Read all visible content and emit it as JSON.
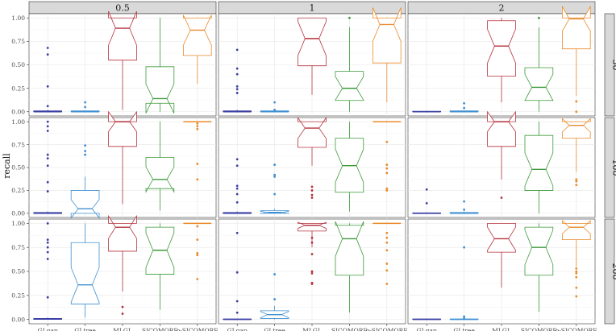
{
  "chart_data": {
    "type": "box",
    "ylabel": "recall",
    "xlabel": "",
    "ylim": [
      0,
      1
    ],
    "yticks": [
      0.0,
      0.25,
      0.5,
      0.75,
      1.0
    ],
    "ytick_labels": [
      "0.00",
      "0.25",
      "0.50",
      "0.75",
      "1.00"
    ],
    "categories": [
      "GLgap",
      "GLtree",
      "MLGL",
      "SICOMORE",
      "ρ-SICOMORE"
    ],
    "colors": {
      "GLgap": "#3a3fa3",
      "GLtree": "#3f8fd2",
      "MLGL": "#b5323d",
      "SICOMORE": "#3d9a3a",
      "ρ-SICOMORE": "#ea8a2a"
    },
    "notched": true,
    "facet_columns": [
      "0.5",
      "1",
      "2"
    ],
    "facet_rows": [
      "50",
      "100",
      "200"
    ],
    "grid": true,
    "legend": "none",
    "panels": [
      {
        "col": "0.5",
        "row": "50",
        "boxes": [
          {
            "cat": "GLgap",
            "q1": 0,
            "median": 0,
            "q3": 0.01,
            "low": 0,
            "high": 0.02,
            "outliers": [
              0.06,
              0.27,
              0.61,
              0.68
            ]
          },
          {
            "cat": "GLtree",
            "q1": 0,
            "median": 0,
            "q3": 0.01,
            "low": 0,
            "high": 0.01,
            "outliers": [
              0.05,
              0.1
            ]
          },
          {
            "cat": "MLGL",
            "q1": 0.55,
            "median": 0.89,
            "q3": 1.0,
            "low": 0.02,
            "high": 1.0,
            "outliers": []
          },
          {
            "cat": "SICOMORE",
            "q1": 0.09,
            "median": 0.14,
            "q3": 0.48,
            "low": 0,
            "high": 1.0,
            "outliers": []
          },
          {
            "cat": "ρ-SICOMORE",
            "q1": 0.6,
            "median": 0.87,
            "q3": 1.0,
            "low": 0.3,
            "high": 1.0,
            "outliers": []
          }
        ]
      },
      {
        "col": "1",
        "row": "50",
        "boxes": [
          {
            "cat": "GLgap",
            "q1": 0,
            "median": 0,
            "q3": 0.01,
            "low": 0,
            "high": 0.02,
            "outliers": [
              0.2,
              0.24,
              0.27,
              0.4,
              0.46,
              0.66
            ]
          },
          {
            "cat": "GLtree",
            "q1": 0,
            "median": 0,
            "q3": 0.01,
            "low": 0,
            "high": 0.01,
            "outliers": [
              0.02,
              0.1
            ]
          },
          {
            "cat": "MLGL",
            "q1": 0.49,
            "median": 0.78,
            "q3": 1.0,
            "low": 0.18,
            "high": 1.0,
            "outliers": []
          },
          {
            "cat": "SICOMORE",
            "q1": 0.12,
            "median": 0.25,
            "q3": 0.43,
            "low": 0,
            "high": 0.9,
            "outliers": [
              1.0
            ]
          },
          {
            "cat": "ρ-SICOMORE",
            "q1": 0.52,
            "median": 0.93,
            "q3": 1.0,
            "low": 0.1,
            "high": 1.0,
            "outliers": []
          }
        ]
      },
      {
        "col": "2",
        "row": "50",
        "boxes": [
          {
            "cat": "GLgap",
            "q1": 0,
            "median": 0,
            "q3": 0.005,
            "low": 0,
            "high": 0.01,
            "outliers": []
          },
          {
            "cat": "GLtree",
            "q1": 0,
            "median": 0,
            "q3": 0.01,
            "low": 0,
            "high": 0.01,
            "outliers": [
              0.04,
              0.09
            ]
          },
          {
            "cat": "MLGL",
            "q1": 0.38,
            "median": 0.7,
            "q3": 0.97,
            "low": 0.1,
            "high": 1.0,
            "outliers": []
          },
          {
            "cat": "SICOMORE",
            "q1": 0.12,
            "median": 0.26,
            "q3": 0.47,
            "low": 0,
            "high": 0.9,
            "outliers": [
              1.0
            ]
          },
          {
            "cat": "ρ-SICOMORE",
            "q1": 0.67,
            "median": 0.99,
            "q3": 1.0,
            "low": 0.17,
            "high": 1.0,
            "outliers": [
              0.0,
              0.11
            ]
          }
        ]
      },
      {
        "col": "0.5",
        "row": "100",
        "boxes": [
          {
            "cat": "GLgap",
            "q1": 0,
            "median": 0,
            "q3": 0.01,
            "low": 0,
            "high": 0.02,
            "outliers": [
              0.24,
              0.34,
              0.52,
              0.6,
              0.64,
              0.9,
              0.95,
              1.0
            ]
          },
          {
            "cat": "GLtree",
            "q1": 0,
            "median": 0.05,
            "q3": 0.25,
            "low": 0,
            "high": 0.4,
            "outliers": [
              0.64,
              0.68,
              0.74
            ]
          },
          {
            "cat": "MLGL",
            "q1": 0.73,
            "median": 1.0,
            "q3": 1.0,
            "low": 0.1,
            "high": 1.0,
            "outliers": []
          },
          {
            "cat": "SICOMORE",
            "q1": 0.27,
            "median": 0.37,
            "q3": 0.61,
            "low": 0.03,
            "high": 1.0,
            "outliers": []
          },
          {
            "cat": "ρ-SICOMORE",
            "q1": 1.0,
            "median": 1.0,
            "q3": 1.0,
            "low": 1.0,
            "high": 1.0,
            "outliers": [
              0.37,
              0.54,
              0.92,
              0.95,
              0.98
            ]
          }
        ]
      },
      {
        "col": "1",
        "row": "100",
        "boxes": [
          {
            "cat": "GLgap",
            "q1": 0,
            "median": 0,
            "q3": 0.01,
            "low": 0,
            "high": 0.02,
            "outliers": [
              0.12,
              0.21,
              0.27,
              0.3,
              0.52,
              0.59
            ]
          },
          {
            "cat": "GLtree",
            "q1": 0,
            "median": 0.01,
            "q3": 0.03,
            "low": 0,
            "high": 0.05,
            "outliers": [
              0.21,
              0.4,
              0.42,
              0.53
            ]
          },
          {
            "cat": "MLGL",
            "q1": 0.72,
            "median": 0.93,
            "q3": 1.0,
            "low": 0.52,
            "high": 1.0,
            "outliers": [
              0.17,
              0.2,
              0.25,
              0.29
            ]
          },
          {
            "cat": "SICOMORE",
            "q1": 0.23,
            "median": 0.52,
            "q3": 0.82,
            "low": 0.02,
            "high": 1.0,
            "outliers": []
          },
          {
            "cat": "ρ-SICOMORE",
            "q1": 1.0,
            "median": 1.0,
            "q3": 1.0,
            "low": 1.0,
            "high": 1.0,
            "outliers": [
              0.25,
              0.27,
              0.44,
              0.49,
              0.53,
              0.78
            ]
          }
        ]
      },
      {
        "col": "2",
        "row": "100",
        "boxes": [
          {
            "cat": "GLgap",
            "q1": 0,
            "median": 0,
            "q3": 0.005,
            "low": 0,
            "high": 0.01,
            "outliers": [
              0.11,
              0.26
            ]
          },
          {
            "cat": "GLtree",
            "q1": 0,
            "median": 0,
            "q3": 0.01,
            "low": 0,
            "high": 0.02,
            "outliers": [
              0.04,
              0.13
            ]
          },
          {
            "cat": "MLGL",
            "q1": 0.73,
            "median": 1.0,
            "q3": 1.0,
            "low": 0.37,
            "high": 1.0,
            "outliers": [
              0.17
            ]
          },
          {
            "cat": "SICOMORE",
            "q1": 0.25,
            "median": 0.48,
            "q3": 0.85,
            "low": 0,
            "high": 1.0,
            "outliers": []
          },
          {
            "cat": "ρ-SICOMORE",
            "q1": 0.82,
            "median": 0.96,
            "q3": 1.0,
            "low": 0.45,
            "high": 1.0,
            "outliers": [
              0.31,
              0.35,
              0.37
            ]
          }
        ]
      },
      {
        "col": "0.5",
        "row": "200",
        "boxes": [
          {
            "cat": "GLgap",
            "q1": 0,
            "median": 0.005,
            "q3": 0.01,
            "low": 0,
            "high": 0.02,
            "outliers": [
              0.23,
              0.63,
              0.7,
              0.75,
              0.8,
              0.83,
              1.0
            ]
          },
          {
            "cat": "GLtree",
            "q1": 0.16,
            "median": 0.36,
            "q3": 0.8,
            "low": 0.02,
            "high": 1.0,
            "outliers": []
          },
          {
            "cat": "MLGL",
            "q1": 0.71,
            "median": 0.96,
            "q3": 1.0,
            "low": 0.29,
            "high": 1.0,
            "outliers": [
              0.06,
              0.13
            ]
          },
          {
            "cat": "SICOMORE",
            "q1": 0.47,
            "median": 0.72,
            "q3": 0.96,
            "low": 0.1,
            "high": 1.0,
            "outliers": []
          },
          {
            "cat": "ρ-SICOMORE",
            "q1": 1.0,
            "median": 1.0,
            "q3": 1.0,
            "low": 1.0,
            "high": 1.0,
            "outliers": [
              0.42,
              0.67,
              0.69,
              0.83,
              0.97
            ]
          }
        ]
      },
      {
        "col": "1",
        "row": "200",
        "boxes": [
          {
            "cat": "GLgap",
            "q1": 0,
            "median": 0,
            "q3": 0.005,
            "low": 0,
            "high": 0.01,
            "outliers": [
              0.07,
              0.19,
              0.49,
              0.9
            ]
          },
          {
            "cat": "GLtree",
            "q1": 0.01,
            "median": 0.05,
            "q3": 0.09,
            "low": 0,
            "high": 0.14,
            "outliers": [
              0.21,
              0.47
            ]
          },
          {
            "cat": "MLGL",
            "q1": 0.92,
            "median": 0.98,
            "q3": 1.0,
            "low": 0.75,
            "high": 1.0,
            "outliers": [
              0.37,
              0.38,
              0.48,
              0.5,
              0.68,
              0.8,
              0.85
            ]
          },
          {
            "cat": "SICOMORE",
            "q1": 0.46,
            "median": 0.84,
            "q3": 0.98,
            "low": 0.07,
            "high": 1.0,
            "outliers": []
          },
          {
            "cat": "ρ-SICOMORE",
            "q1": 1.0,
            "median": 1.0,
            "q3": 1.0,
            "low": 1.0,
            "high": 1.0,
            "outliers": [
              0.37,
              0.51,
              0.58,
              0.72,
              0.8,
              0.85,
              0.9
            ]
          }
        ]
      },
      {
        "col": "2",
        "row": "200",
        "boxes": [
          {
            "cat": "GLgap",
            "q1": 0,
            "median": 0,
            "q3": 0.005,
            "low": 0,
            "high": 0.01,
            "outliers": []
          },
          {
            "cat": "GLtree",
            "q1": 0,
            "median": 0,
            "q3": 0.005,
            "low": 0,
            "high": 0.01,
            "outliers": [
              0.01,
              0.03,
              0.75
            ]
          },
          {
            "cat": "MLGL",
            "q1": 0.7,
            "median": 0.84,
            "q3": 1.0,
            "low": 0.33,
            "high": 1.0,
            "outliers": []
          },
          {
            "cat": "SICOMORE",
            "q1": 0.46,
            "median": 0.75,
            "q3": 0.96,
            "low": 0.08,
            "high": 1.0,
            "outliers": []
          },
          {
            "cat": "ρ-SICOMORE",
            "q1": 0.83,
            "median": 0.96,
            "q3": 1.0,
            "low": 0.55,
            "high": 1.0,
            "outliers": [
              0.24,
              0.33,
              0.44,
              0.48,
              0.5,
              0.53
            ]
          }
        ]
      }
    ]
  }
}
